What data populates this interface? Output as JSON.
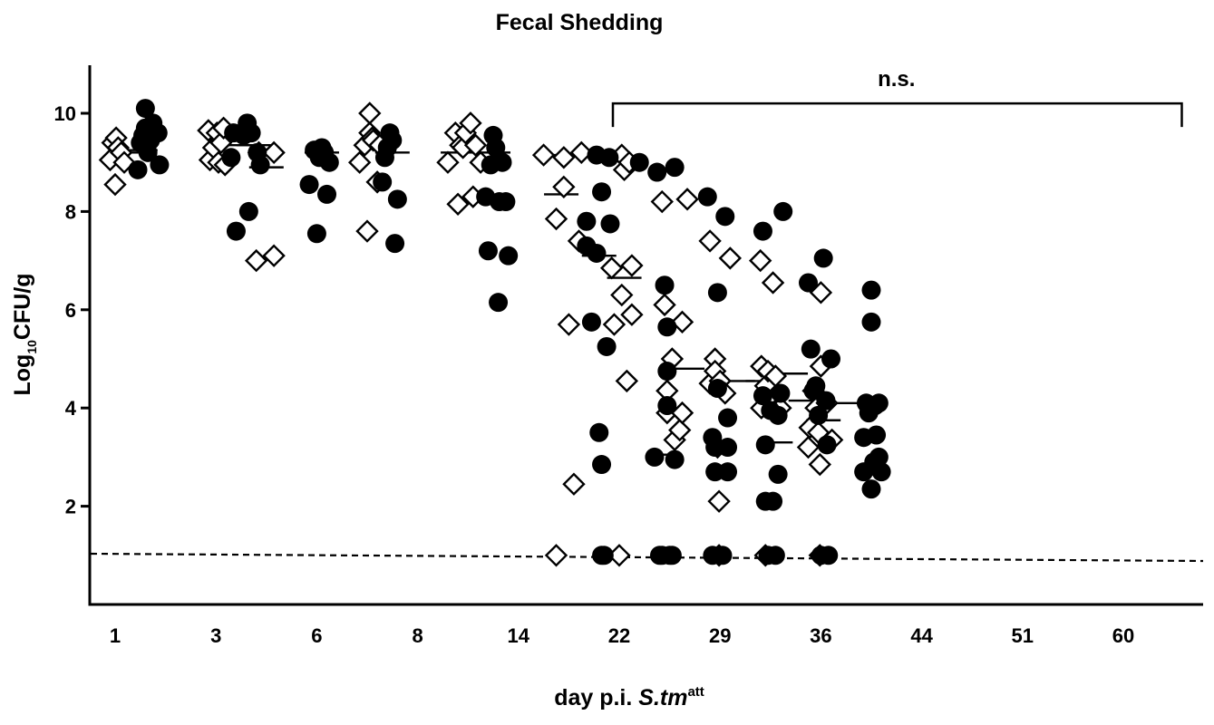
{
  "chart_data": {
    "type": "scatter",
    "title": "Fecal Shedding",
    "ylabel": {
      "main": "Log",
      "sub": "10",
      "rest": "CFU/g"
    },
    "xlabel": {
      "prefix": "day p.i. ",
      "italic": "S.tm",
      "sup": "att"
    },
    "categories": [
      "1",
      "3",
      "6",
      "8",
      "14",
      "22",
      "29",
      "36",
      "44",
      "51",
      "60"
    ],
    "ylim": [
      0,
      11
    ],
    "yticks": [
      2,
      4,
      6,
      8,
      10
    ],
    "grid": false,
    "detection_limit": 1.0,
    "annotation": {
      "text": "n.s.",
      "from_category": "22",
      "to_index": 10.58,
      "y": 10.2
    },
    "series": [
      {
        "name": "",
        "marker": "open-diamond",
        "points": [
          [
            -0.1,
            9.05
          ],
          [
            -0.05,
            9.4
          ],
          [
            0.0,
            8.55
          ],
          [
            0.02,
            9.5
          ],
          [
            0.06,
            9.3
          ],
          [
            0.12,
            9.2
          ],
          [
            0.18,
            9.0
          ],
          [
            1.85,
            9.65
          ],
          [
            1.88,
            9.05
          ],
          [
            1.95,
            9.3
          ],
          [
            2.02,
            9.6
          ],
          [
            2.05,
            9.0
          ],
          [
            2.1,
            9.4
          ],
          [
            2.15,
            9.7
          ],
          [
            2.18,
            8.95
          ],
          [
            2.8,
            7.0
          ],
          [
            2.85,
            9.2
          ],
          [
            3.15,
            7.1
          ],
          [
            3.15,
            9.2
          ],
          [
            4.85,
            9.0
          ],
          [
            4.95,
            9.35
          ],
          [
            5.0,
            7.6
          ],
          [
            5.05,
            9.6
          ],
          [
            5.05,
            10.0
          ],
          [
            5.1,
            9.5
          ],
          [
            5.12,
            9.45
          ],
          [
            5.2,
            8.6
          ],
          [
            5.25,
            9.35
          ],
          [
            6.6,
            9.0
          ],
          [
            6.75,
            9.6
          ],
          [
            6.8,
            8.15
          ],
          [
            6.85,
            9.35
          ],
          [
            6.9,
            9.3
          ],
          [
            6.95,
            9.6
          ],
          [
            7.05,
            9.8
          ],
          [
            7.1,
            8.3
          ],
          [
            7.15,
            9.35
          ],
          [
            7.25,
            9.0
          ],
          [
            8.5,
            9.15
          ],
          [
            8.75,
            1.0
          ],
          [
            8.75,
            7.85
          ],
          [
            8.9,
            8.5
          ],
          [
            8.9,
            9.1
          ],
          [
            9.0,
            5.7
          ],
          [
            9.1,
            2.45
          ],
          [
            9.2,
            7.4
          ],
          [
            9.25,
            9.2
          ],
          [
            9.85,
            6.85
          ],
          [
            9.9,
            5.7
          ],
          [
            10.0,
            1.0
          ],
          [
            10.05,
            6.3
          ],
          [
            10.05,
            9.15
          ],
          [
            10.1,
            8.85
          ],
          [
            10.15,
            4.55
          ],
          [
            10.2,
            9.0
          ],
          [
            10.25,
            6.9
          ],
          [
            10.25,
            5.9
          ],
          [
            10.85,
            8.2
          ],
          [
            10.9,
            6.1
          ],
          [
            10.95,
            4.35
          ],
          [
            10.95,
            3.9
          ],
          [
            11.05,
            5.0
          ],
          [
            11.1,
            3.35
          ],
          [
            11.2,
            3.55
          ],
          [
            11.25,
            3.9
          ],
          [
            11.25,
            5.75
          ],
          [
            11.35,
            8.25
          ],
          [
            11.8,
            4.5
          ],
          [
            11.8,
            7.4
          ],
          [
            11.9,
            5.0
          ],
          [
            11.9,
            4.75
          ],
          [
            11.95,
            3.2
          ],
          [
            11.98,
            2.1
          ],
          [
            11.98,
            1.0
          ],
          [
            12.0,
            4.55
          ],
          [
            12.1,
            4.3
          ],
          [
            12.2,
            7.05
          ],
          [
            12.8,
            7.0
          ],
          [
            12.82,
            4.0
          ],
          [
            12.82,
            4.85
          ],
          [
            12.9,
            4.45
          ],
          [
            12.9,
            1.0
          ],
          [
            12.95,
            4.75
          ],
          [
            13.05,
            6.55
          ],
          [
            13.1,
            4.65
          ],
          [
            13.15,
            4.0
          ],
          [
            13.2,
            4.0
          ],
          [
            13.75,
            3.2
          ],
          [
            13.78,
            3.6
          ],
          [
            13.85,
            4.35
          ],
          [
            13.9,
            4.0
          ],
          [
            13.95,
            3.5
          ],
          [
            13.98,
            2.85
          ],
          [
            13.98,
            1.0
          ],
          [
            14.0,
            6.35
          ],
          [
            14.0,
            4.85
          ],
          [
            14.12,
            4.1
          ],
          [
            14.22,
            3.35
          ]
        ]
      },
      {
        "name": "",
        "marker": "filled-circle",
        "points": [
          [
            0.45,
            8.85
          ],
          [
            0.5,
            9.4
          ],
          [
            0.55,
            9.55
          ],
          [
            0.6,
            10.1
          ],
          [
            0.6,
            9.7
          ],
          [
            0.65,
            9.2
          ],
          [
            0.7,
            9.45
          ],
          [
            0.75,
            9.8
          ],
          [
            0.85,
            9.6
          ],
          [
            0.88,
            8.95
          ],
          [
            2.3,
            9.1
          ],
          [
            2.35,
            9.6
          ],
          [
            2.4,
            7.6
          ],
          [
            2.55,
            9.55
          ],
          [
            2.62,
            9.8
          ],
          [
            2.65,
            8.0
          ],
          [
            2.7,
            9.6
          ],
          [
            2.82,
            9.2
          ],
          [
            2.88,
            8.95
          ],
          [
            3.85,
            8.55
          ],
          [
            3.95,
            9.25
          ],
          [
            4.0,
            7.55
          ],
          [
            4.05,
            9.1
          ],
          [
            4.1,
            9.3
          ],
          [
            4.15,
            9.2
          ],
          [
            4.2,
            8.35
          ],
          [
            4.25,
            9.0
          ],
          [
            5.3,
            8.6
          ],
          [
            5.35,
            9.1
          ],
          [
            5.4,
            9.3
          ],
          [
            5.45,
            9.6
          ],
          [
            5.5,
            9.45
          ],
          [
            5.55,
            7.35
          ],
          [
            5.6,
            8.25
          ],
          [
            7.35,
            8.3
          ],
          [
            7.4,
            7.2
          ],
          [
            7.45,
            8.95
          ],
          [
            7.5,
            9.55
          ],
          [
            7.55,
            9.3
          ],
          [
            7.6,
            6.15
          ],
          [
            7.62,
            8.2
          ],
          [
            7.68,
            9.0
          ],
          [
            7.75,
            8.2
          ],
          [
            7.8,
            7.1
          ],
          [
            9.35,
            7.8
          ],
          [
            9.35,
            7.3
          ],
          [
            9.45,
            5.75
          ],
          [
            9.55,
            9.15
          ],
          [
            9.55,
            7.15
          ],
          [
            9.6,
            3.5
          ],
          [
            9.65,
            8.4
          ],
          [
            9.65,
            1.0
          ],
          [
            9.65,
            2.85
          ],
          [
            9.7,
            1.0
          ],
          [
            9.75,
            5.25
          ],
          [
            9.8,
            9.1
          ],
          [
            9.82,
            7.75
          ],
          [
            10.4,
            9.0
          ],
          [
            10.7,
            3.0
          ],
          [
            10.75,
            8.8
          ],
          [
            10.8,
            1.0
          ],
          [
            10.85,
            1.0
          ],
          [
            10.9,
            6.5
          ],
          [
            10.95,
            5.65
          ],
          [
            10.95,
            4.75
          ],
          [
            10.95,
            4.05
          ],
          [
            11.0,
            1.0
          ],
          [
            11.05,
            1.0
          ],
          [
            11.1,
            2.95
          ],
          [
            11.1,
            8.9
          ],
          [
            11.75,
            8.3
          ],
          [
            11.85,
            3.4
          ],
          [
            11.85,
            1.0
          ],
          [
            11.9,
            3.2
          ],
          [
            11.9,
            2.7
          ],
          [
            11.95,
            6.35
          ],
          [
            11.95,
            4.4
          ],
          [
            12.05,
            1.0
          ],
          [
            12.1,
            7.9
          ],
          [
            12.15,
            3.8
          ],
          [
            12.15,
            3.2
          ],
          [
            12.15,
            2.7
          ],
          [
            12.85,
            7.6
          ],
          [
            12.85,
            4.25
          ],
          [
            12.9,
            3.25
          ],
          [
            12.9,
            2.1
          ],
          [
            12.95,
            1.0
          ],
          [
            13.0,
            3.95
          ],
          [
            13.05,
            2.1
          ],
          [
            13.1,
            1.0
          ],
          [
            13.15,
            3.85
          ],
          [
            13.15,
            2.65
          ],
          [
            13.2,
            4.3
          ],
          [
            13.25,
            8.0
          ],
          [
            13.75,
            6.55
          ],
          [
            13.8,
            5.2
          ],
          [
            13.85,
            4.35
          ],
          [
            13.9,
            4.45
          ],
          [
            13.95,
            3.85
          ],
          [
            14.0,
            1.0
          ],
          [
            14.05,
            7.05
          ],
          [
            14.1,
            4.15
          ],
          [
            14.12,
            3.25
          ],
          [
            14.15,
            1.0
          ],
          [
            14.2,
            5.0
          ],
          [
            14.85,
            3.4
          ],
          [
            14.85,
            2.7
          ],
          [
            14.9,
            4.1
          ],
          [
            14.95,
            3.9
          ],
          [
            15.0,
            2.35
          ],
          [
            15.0,
            6.4
          ],
          [
            15.0,
            5.75
          ],
          [
            15.05,
            2.9
          ],
          [
            15.08,
            4.05
          ],
          [
            15.1,
            3.45
          ],
          [
            15.15,
            4.1
          ],
          [
            15.15,
            3.0
          ],
          [
            15.2,
            2.7
          ]
        ]
      }
    ],
    "medians": [
      [
        0.3,
        9.2
      ],
      [
        0.5,
        9.25
      ],
      [
        2.35,
        9.35
      ],
      [
        2.75,
        9.35
      ],
      [
        3.0,
        8.9
      ],
      [
        4.1,
        9.2
      ],
      [
        5.5,
        9.2
      ],
      [
        6.8,
        9.2
      ],
      [
        7.5,
        9.2
      ],
      [
        8.75,
        9.15
      ],
      [
        8.85,
        8.35
      ],
      [
        9.6,
        7.1
      ],
      [
        10.1,
        6.65
      ],
      [
        10.9,
        3.05
      ],
      [
        11.35,
        4.8
      ],
      [
        12.35,
        4.55
      ],
      [
        12.85,
        4.55
      ],
      [
        13.1,
        3.3
      ],
      [
        13.4,
        4.7
      ],
      [
        13.7,
        4.15
      ],
      [
        14.05,
        3.75
      ],
      [
        14.4,
        4.1
      ]
    ]
  }
}
